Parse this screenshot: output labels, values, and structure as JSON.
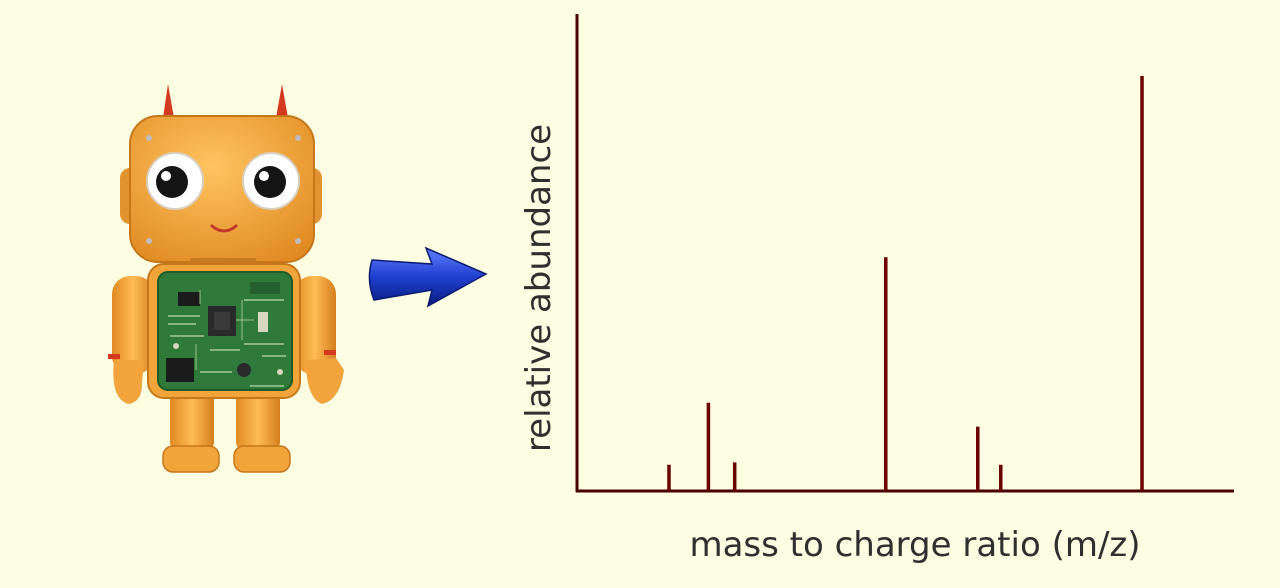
{
  "colors": {
    "background": "#fdfde2",
    "axis": "#4a0000",
    "peaks": "#6b0000",
    "arrow": "#1f3fd0",
    "robot_body": "#f0a43a",
    "circuit_board": "#2f7a3a"
  },
  "illustration": {
    "robot": "robot-mascot-icon",
    "arrow": "right-arrow-icon"
  },
  "chart_data": {
    "type": "bar",
    "subtype": "stick-spectrum",
    "xlabel": "mass to charge ratio (m/z)",
    "ylabel": "relative abundance",
    "title": "",
    "ticks": false,
    "grid": false,
    "xlim": [
      0,
      100
    ],
    "ylim": [
      0,
      100
    ],
    "x": [
      14,
      20,
      24,
      47,
      61,
      64.5,
      86
    ],
    "values": [
      5.5,
      18.5,
      6,
      49,
      13.5,
      5.5,
      87
    ]
  }
}
